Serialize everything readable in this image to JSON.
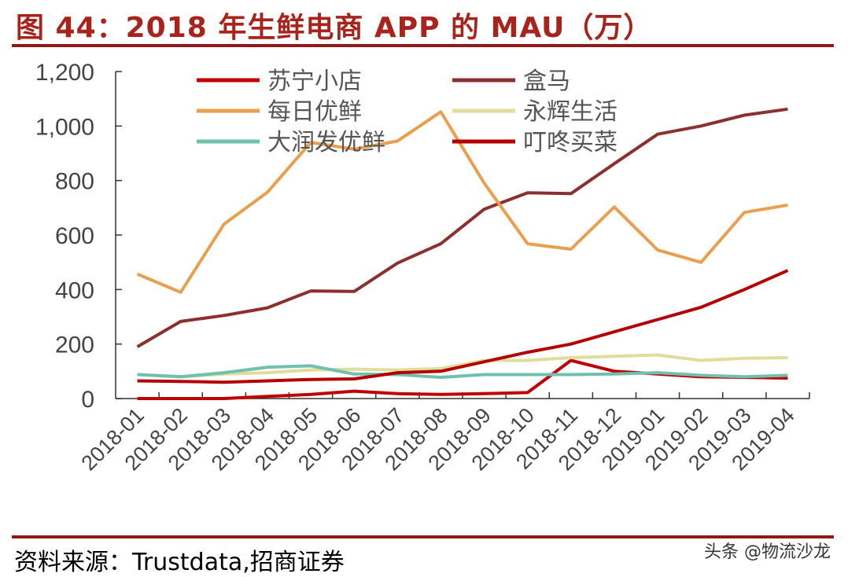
{
  "title": "图 44：2018 年生鲜电商 APP 的 MAU（万）",
  "source": "资料来源：Trustdata,招商证券",
  "watermark": "头条 @物流沙龙",
  "chart_data": {
    "type": "line",
    "title": "图 44：2018 年生鲜电商 APP 的 MAU（万）",
    "xlabel": "",
    "ylabel": "",
    "ylim": [
      0,
      1200
    ],
    "yticks": [
      "0",
      "200",
      "400",
      "600",
      "800",
      "1,000",
      "1,200"
    ],
    "ytick_values": [
      0,
      200,
      400,
      600,
      800,
      1000,
      1200
    ],
    "grid": false,
    "legend_position": "top",
    "categories": [
      "2018-01",
      "2018-02",
      "2018-03",
      "2018-04",
      "2018-05",
      "2018-06",
      "2018-07",
      "2018-08",
      "2018-09",
      "2018-10",
      "2018-11",
      "2018-12",
      "2019-01",
      "2019-02",
      "2019-03",
      "2019-04"
    ],
    "series": [
      {
        "name": "苏宁小店",
        "color": "#c00000",
        "values": [
          0,
          0,
          0,
          8,
          15,
          27,
          18,
          15,
          18,
          22,
          140,
          100,
          90,
          80,
          78,
          75
        ]
      },
      {
        "name": "盒马",
        "color": "#8b2f2f",
        "values": [
          190,
          283,
          305,
          333,
          395,
          393,
          497,
          568,
          695,
          755,
          752,
          862,
          970,
          1000,
          1040,
          1062
        ]
      },
      {
        "name": "每日优鲜",
        "color": "#e9a04e",
        "values": [
          457,
          390,
          640,
          757,
          940,
          915,
          945,
          1052,
          790,
          568,
          548,
          703,
          545,
          500,
          683,
          710
        ]
      },
      {
        "name": "永辉生活",
        "color": "#e0dc9a",
        "values": [
          88,
          80,
          90,
          95,
          105,
          108,
          105,
          110,
          140,
          140,
          150,
          155,
          160,
          140,
          148,
          150
        ]
      },
      {
        "name": "大润发优鲜",
        "color": "#6fc0ae",
        "values": [
          88,
          80,
          95,
          115,
          120,
          90,
          88,
          78,
          88,
          88,
          88,
          90,
          95,
          85,
          80,
          85
        ]
      },
      {
        "name": "叮咚买菜",
        "color": "#b50000",
        "values": [
          65,
          63,
          60,
          65,
          70,
          72,
          95,
          100,
          135,
          170,
          200,
          245,
          290,
          335,
          400,
          470
        ]
      }
    ]
  }
}
